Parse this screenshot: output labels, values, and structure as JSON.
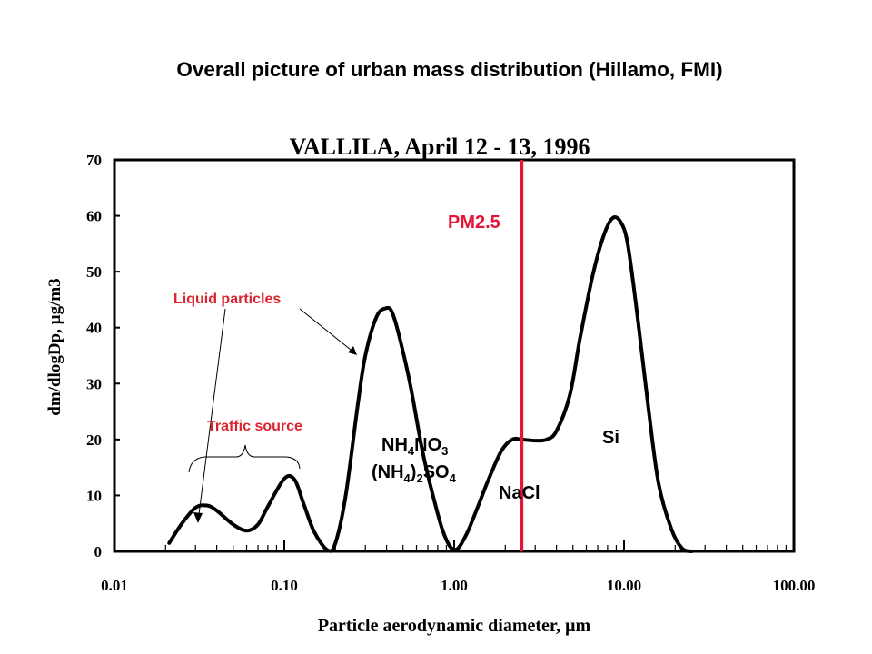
{
  "slide_title": "Overall picture of urban mass distribution (Hillamo, FMI)",
  "colors": {
    "pm_line": "#e3163a",
    "annotation_red": "#d9232e",
    "axis": "#000000"
  },
  "chart_data": {
    "type": "line",
    "title": "VALLILA, April 12 - 13, 1996",
    "xlabel": "Particle aerodynamic diameter, µm",
    "ylabel": "dm/dlogDp, µg/m3",
    "xscale": "log",
    "xlim": [
      0.01,
      100
    ],
    "ylim": [
      0,
      70
    ],
    "x_ticks": [
      {
        "value": 0.01,
        "label": "0.01"
      },
      {
        "value": 0.1,
        "label": "0.10"
      },
      {
        "value": 1,
        "label": "1.00"
      },
      {
        "value": 10,
        "label": "10.00"
      },
      {
        "value": 100,
        "label": "100.00"
      }
    ],
    "y_ticks": [
      0,
      10,
      20,
      30,
      40,
      50,
      60,
      70
    ],
    "series": [
      {
        "x": [
          0.021,
          0.025,
          0.03,
          0.035,
          0.04,
          0.05,
          0.06,
          0.07,
          0.08,
          0.1,
          0.115,
          0.13,
          0.15,
          0.18,
          0.2,
          0.23,
          0.27,
          0.3,
          0.35,
          0.4,
          0.43,
          0.47,
          0.55,
          0.65,
          0.75,
          0.85,
          0.95,
          1.05,
          1.2,
          1.4,
          1.6,
          1.9,
          2.2,
          2.5,
          3.0,
          3.5,
          4.0,
          4.8,
          5.5,
          6.5,
          7.5,
          8.5,
          9.5,
          10.5,
          12.0,
          14.0,
          16.0,
          19.0,
          22.0,
          25.0
        ],
        "y": [
          1.5,
          5.0,
          7.8,
          8.2,
          7.3,
          4.8,
          3.7,
          4.8,
          8.0,
          13.0,
          12.8,
          8.5,
          3.5,
          0.2,
          1.5,
          10.0,
          26.0,
          35.0,
          42.0,
          43.5,
          42.8,
          39.0,
          30.0,
          18.0,
          10.0,
          4.0,
          0.8,
          0.5,
          3.5,
          8.5,
          13.0,
          18.0,
          20.0,
          20.0,
          19.8,
          20.0,
          21.5,
          28.0,
          38.0,
          49.0,
          56.0,
          59.5,
          59.0,
          55.0,
          42.0,
          25.0,
          12.0,
          4.0,
          0.5,
          0.0
        ]
      }
    ],
    "reference_lines": [
      {
        "x": 2.5,
        "label": "PM2.5"
      }
    ],
    "annotations": {
      "liquid": "Liquid particles",
      "traffic": "Traffic source",
      "nh4no3_main": "NH",
      "nh4no3_sub1": "4",
      "nh4no3_mid": "NO",
      "nh4no3_sub2": "3",
      "so4_open": "(NH",
      "so4_sub1": "4",
      "so4_close": ")",
      "so4_sub2": "2",
      "so4_mid": "SO",
      "so4_sub3": "4",
      "nacl": "NaCl",
      "si": "Si"
    }
  }
}
